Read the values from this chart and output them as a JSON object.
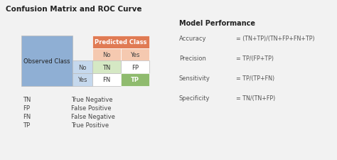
{
  "title": "Confusion Matrix and ROC Curve",
  "bg_color": "#f2f2f2",
  "predicted_label": "Predicted Class",
  "observed_label": "Observed Class",
  "no_label": "No",
  "yes_label": "Yes",
  "tn_label": "TN",
  "fp_label": "FP",
  "fn_label": "FN",
  "tp_label": "TP",
  "predicted_header_color": "#e07b54",
  "predicted_header_light": "#f5c9b0",
  "observed_color": "#8fafd4",
  "observed_row_color": "#c5d8ed",
  "tn_color": "#d5e8c4",
  "tp_color": "#8fbb6e",
  "fp_color": "#ffffff",
  "fn_color": "#ffffff",
  "cell_border": "#bbbbbb",
  "model_perf_title": "Model Performance",
  "accuracy_label": "Accuracy",
  "accuracy_formula": "= (TN+TP)/(TN+FP+FN+TP)",
  "precision_label": "Precision",
  "precision_formula": "= TP/(FP+TP)",
  "sensitivity_label": "Sensitivity",
  "sensitivity_formula": "= TP/(TP+FN)",
  "specificity_label": "Specificity",
  "specificity_formula": "= TN/(TN+FP)",
  "abbrs": [
    [
      "TN",
      "True Negative"
    ],
    [
      "FP",
      "False Positive"
    ],
    [
      "FN",
      "False Negative"
    ],
    [
      "TP",
      "True Positive"
    ]
  ],
  "fs_title": 7.5,
  "fs_body": 6.0,
  "fs_model_title": 7.0,
  "fs_formula": 5.8
}
